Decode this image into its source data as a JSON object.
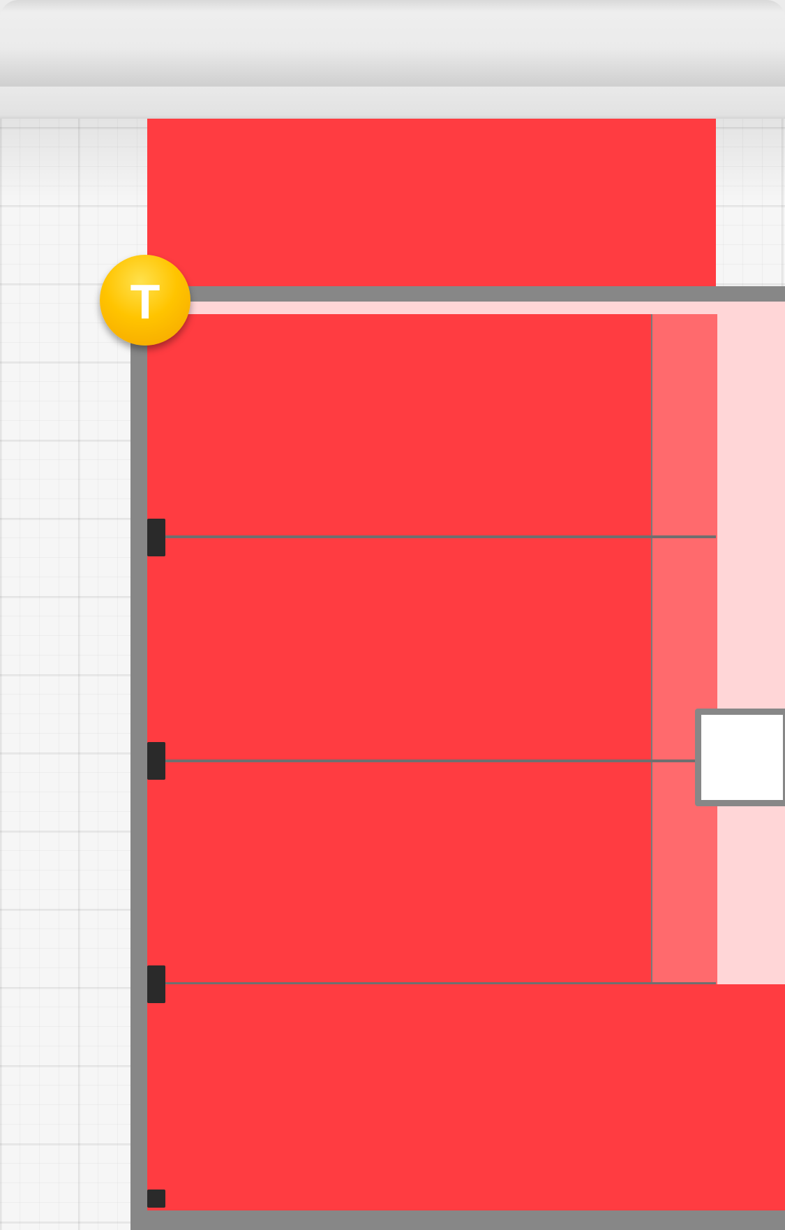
{
  "window": {
    "title": ""
  },
  "badge": {
    "label": "T"
  },
  "colors": {
    "primary_block": "#ff3c41",
    "secondary_column": "#ff6a6d",
    "inner_background": "#ffd6d7",
    "frame_border": "#878787",
    "badge": "#ffc400"
  },
  "icons": {
    "resize_handle": "resize-handle-icon",
    "badge": "text-badge-icon"
  }
}
